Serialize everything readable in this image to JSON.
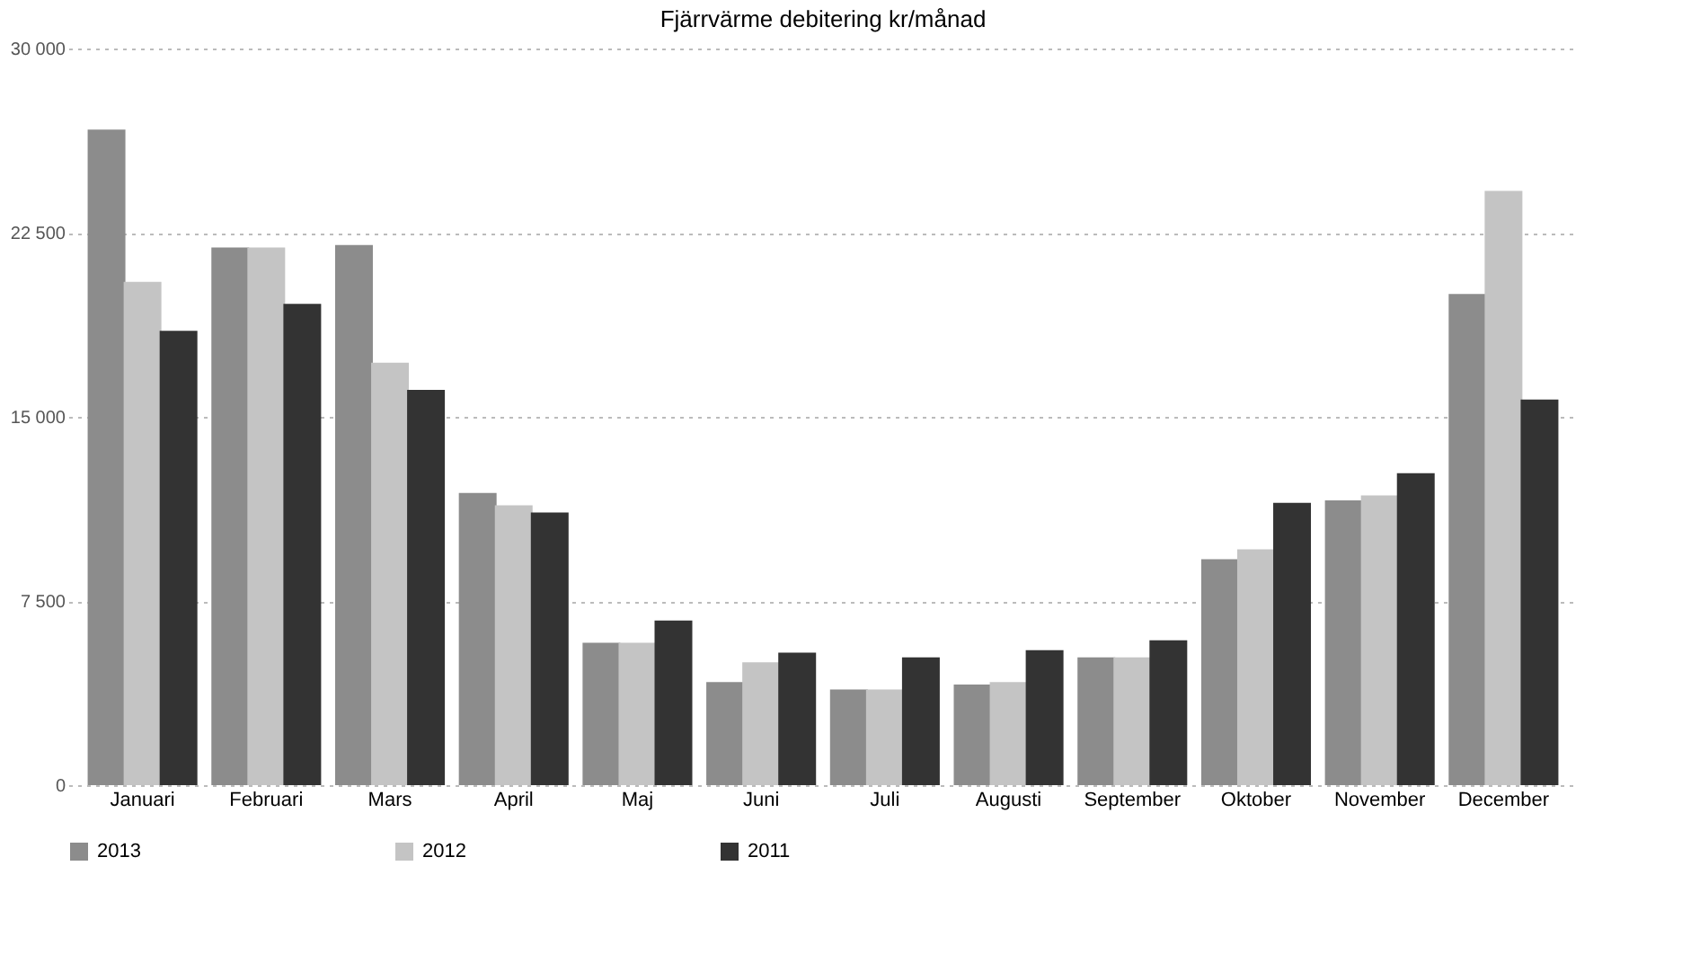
{
  "chart_data": {
    "type": "bar",
    "title": "Fjärrvärme debitering kr/månad",
    "categories": [
      "Januari",
      "Februari",
      "Mars",
      "April",
      "Maj",
      "Juni",
      "Juli",
      "Augusti",
      "September",
      "Oktober",
      "November",
      "December"
    ],
    "series": [
      {
        "name": "2013",
        "color": "#8c8c8c",
        "values": [
          26700,
          21900,
          22000,
          11900,
          5800,
          4200,
          3900,
          4100,
          5200,
          9200,
          11600,
          20000
        ]
      },
      {
        "name": "2012",
        "color": "#c4c4c4",
        "values": [
          20500,
          21900,
          17200,
          11400,
          5800,
          5000,
          3900,
          4200,
          5200,
          9600,
          11800,
          24200
        ]
      },
      {
        "name": "2011",
        "color": "#333333",
        "values": [
          18500,
          19600,
          16100,
          11100,
          6700,
          5400,
          5200,
          5500,
          5900,
          11500,
          12700,
          15700
        ]
      }
    ],
    "ylim": [
      0,
      30000
    ],
    "yticks": [
      0,
      {
        "value": 7500,
        "label": "7 500"
      },
      {
        "value": 15000,
        "label": "15 000"
      },
      {
        "value": 22500,
        "label": "22 500"
      },
      {
        "value": 30000,
        "label": "30 000"
      }
    ],
    "grid": "y",
    "legend": "bottom"
  }
}
